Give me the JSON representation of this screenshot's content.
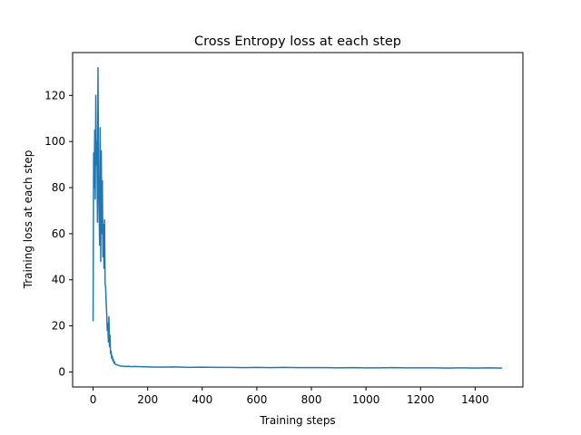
{
  "chart_data": {
    "type": "line",
    "title": "Cross Entropy loss at each step",
    "xlabel": "Training steps",
    "ylabel": "Training loss at each step",
    "xlim": [
      -75,
      1575
    ],
    "ylim": [
      -6.5,
      138.6
    ],
    "xticks": [
      0,
      200,
      400,
      600,
      800,
      1000,
      1200,
      1400
    ],
    "yticks": [
      0,
      20,
      40,
      60,
      80,
      100,
      120
    ],
    "grid": false,
    "line_color": "#1f77b4",
    "series": [
      {
        "x": [
          0,
          2,
          4,
          6,
          8,
          10,
          12,
          14,
          16,
          18,
          20,
          22,
          24,
          26,
          28,
          30,
          32,
          34,
          36,
          38,
          40,
          42,
          44,
          46,
          48,
          50,
          52,
          54,
          56,
          58,
          60,
          62,
          64,
          66,
          68,
          70,
          72,
          74,
          76,
          78,
          80,
          85,
          90,
          95,
          100,
          110,
          120,
          130,
          140,
          150,
          175,
          200,
          250,
          300,
          350,
          400,
          450,
          500,
          550,
          600,
          650,
          700,
          750,
          800,
          850,
          900,
          950,
          1000,
          1050,
          1100,
          1150,
          1200,
          1250,
          1300,
          1350,
          1400,
          1450,
          1499
        ],
        "values": [
          22,
          95,
          80,
          105,
          75,
          120,
          90,
          100,
          65,
          132,
          85,
          70,
          55,
          106,
          48,
          96,
          60,
          83,
          50,
          64,
          45,
          66,
          38,
          37,
          30,
          25,
          18,
          21,
          13,
          24,
          11,
          16,
          8,
          9,
          6,
          7,
          5,
          5.5,
          4,
          4.5,
          3.5,
          3.2,
          3,
          2.8,
          2.6,
          2.5,
          2.4,
          2.5,
          2.3,
          2.4,
          2.3,
          2.2,
          2.1,
          2.2,
          2.0,
          2.1,
          2.0,
          2.0,
          1.9,
          2.0,
          1.9,
          2.0,
          1.9,
          1.9,
          1.9,
          1.8,
          1.9,
          1.8,
          1.8,
          1.9,
          1.8,
          1.8,
          1.8,
          1.7,
          1.8,
          1.7,
          1.8,
          1.7
        ]
      }
    ]
  }
}
